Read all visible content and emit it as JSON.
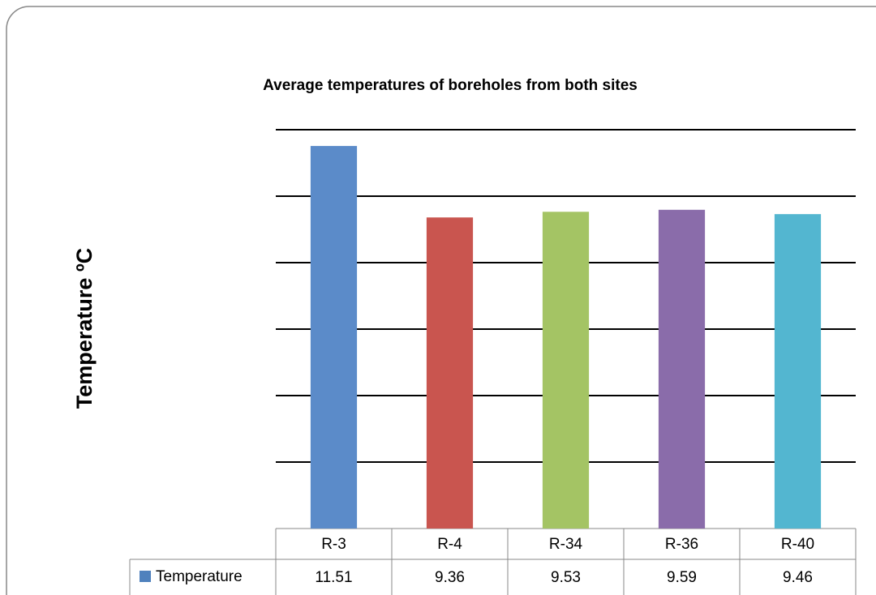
{
  "chart_data": {
    "type": "bar",
    "title": "Average temperatures of boreholes from both sites",
    "y_label": "Temperature ºC",
    "categories": [
      "R-3",
      "R-4",
      "R-34",
      "R-36",
      "R-40"
    ],
    "series": [
      {
        "name": "Temperature",
        "color": "#4f81bd",
        "values": [
          11.51,
          9.36,
          9.53,
          9.59,
          9.46
        ]
      }
    ],
    "bar_colors": [
      "#5b8bc9",
      "#c9554f",
      "#a4c464",
      "#8a6caa",
      "#53b6d0"
    ],
    "ylim": [
      0,
      12
    ],
    "yticks": [
      0,
      2,
      4,
      6,
      8,
      10,
      12
    ],
    "grid": true
  }
}
